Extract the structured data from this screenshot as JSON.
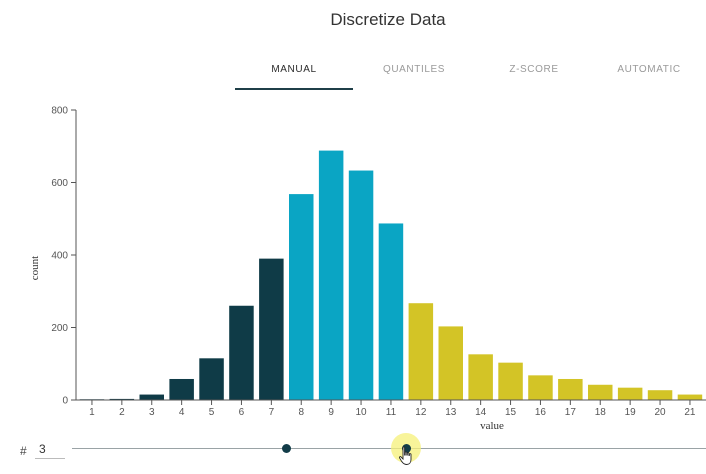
{
  "header": {
    "title": "Discretize Data"
  },
  "tabs": [
    {
      "label": "MANUAL",
      "active": true
    },
    {
      "label": "QUANTILES",
      "active": false
    },
    {
      "label": "Z-SCORE",
      "active": false
    },
    {
      "label": "AUTOMATIC",
      "active": false
    }
  ],
  "controls": {
    "count_prefix": "#",
    "count_value": "3",
    "slider_handle_values": [
      7.5,
      11.5
    ]
  },
  "colors": {
    "bin_1": "#0f3b47",
    "bin_2": "#0aa5c4",
    "bin_3": "#d3c426",
    "axis": "#555555"
  },
  "chart_data": {
    "type": "bar",
    "xlabel": "value",
    "ylabel": "count",
    "ylim": [
      0,
      800
    ],
    "yticks": [
      0,
      200,
      400,
      600,
      800
    ],
    "categories": [
      "1",
      "2",
      "3",
      "4",
      "5",
      "6",
      "7",
      "8",
      "9",
      "10",
      "11",
      "12",
      "13",
      "14",
      "15",
      "16",
      "17",
      "18",
      "19",
      "20",
      "21"
    ],
    "values": [
      2,
      3,
      15,
      58,
      115,
      260,
      390,
      568,
      688,
      633,
      487,
      267,
      203,
      126,
      103,
      68,
      58,
      42,
      34,
      27,
      15
    ],
    "bin_assignment": [
      1,
      1,
      1,
      1,
      1,
      1,
      1,
      2,
      2,
      2,
      2,
      3,
      3,
      3,
      3,
      3,
      3,
      3,
      3,
      3,
      3
    ],
    "grid": false
  }
}
